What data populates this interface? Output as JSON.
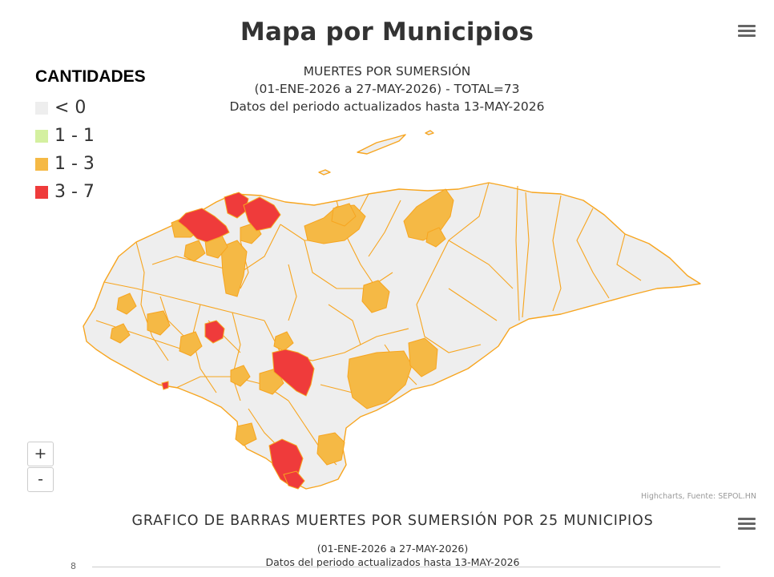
{
  "map": {
    "title": "Mapa por Municipios",
    "subtitle": [
      "MUERTES POR SUMERSIÓN",
      "(01-ENE-2026 a 27-MAY-2026) - TOTAL=73",
      "Datos del periodo actualizados hasta 13-MAY-2026"
    ],
    "legend_title": "CANTIDADES",
    "legend": [
      {
        "label": "< 0",
        "color": "#eeeeee"
      },
      {
        "label": "1 - 1",
        "color": "#d4f0a0"
      },
      {
        "label": "1 - 3",
        "color": "#f5b945"
      },
      {
        "label": "3 - 7",
        "color": "#ef3b3b"
      }
    ],
    "zoom_in": "+",
    "zoom_out": "-",
    "credits": "Highcharts, Fuente: SEPOL.HN",
    "menu_icon": "hamburger-icon"
  },
  "bar_chart": {
    "title": "GRAFICO DE BARRAS MUERTES POR SUMERSIÓN POR 25 MUNICIPIOS",
    "subtitle": [
      "(01-ENE-2026 a 27-MAY-2026)",
      "Datos del periodo actualizados hasta 13-MAY-2026"
    ],
    "y_tick_top": "8"
  },
  "colors": {
    "nodata": "#eeeeee",
    "low": "#f5b945",
    "high": "#ef3b3b",
    "border": "#f7a51f"
  }
}
